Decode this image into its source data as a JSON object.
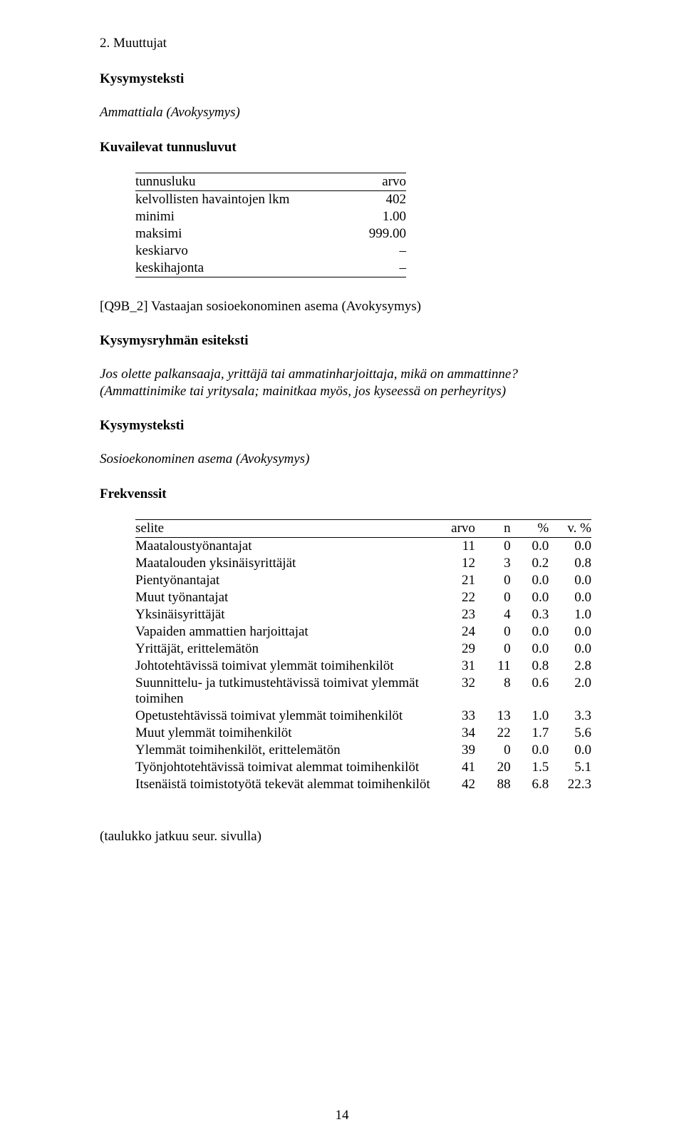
{
  "header": {
    "section": "2. Muuttujat"
  },
  "block1": {
    "heading_kysymysteksti": "Kysymysteksti",
    "subtitle_italic": "Ammattiala (Avokysymys)",
    "heading_kuvailevat": "Kuvailevat tunnusluvut",
    "tunnus": {
      "col_tunnusluku": "tunnusluku",
      "col_arvo": "arvo",
      "rows": [
        {
          "label": "kelvollisten havaintojen lkm",
          "value": "402"
        },
        {
          "label": "minimi",
          "value": "1.00"
        },
        {
          "label": "maksimi",
          "value": "999.00"
        },
        {
          "label": "keskiarvo",
          "value": "–"
        },
        {
          "label": "keskihajonta",
          "value": "–"
        }
      ]
    }
  },
  "block2": {
    "q_heading": "[Q9B_2] Vastaajan sosioekonominen asema (Avokysymys)",
    "heading_kysymysryhma": "Kysymysryhmän esiteksti",
    "esiteksti_italic": "Jos olette palkansaaja, yrittäjä tai ammatinharjoittaja, mikä on ammattinne? (Ammattinimike tai yritysala; mainitkaa myös, jos kyseessä on perheyritys)",
    "heading_kysymysteksti": "Kysymysteksti",
    "kysymysteksti_italic": "Sosioekonominen asema (Avokysymys)",
    "heading_frekvenssit": "Frekvenssit",
    "freq": {
      "col_selite": "selite",
      "col_arvo": "arvo",
      "col_n": "n",
      "col_pct": "%",
      "col_vpct": "v. %",
      "rows": [
        {
          "selite": "Maataloustyönantajat",
          "arvo": "11",
          "n": "0",
          "pct": "0.0",
          "vpct": "0.0"
        },
        {
          "selite": "Maatalouden yksinäisyrittäjät",
          "arvo": "12",
          "n": "3",
          "pct": "0.2",
          "vpct": "0.8"
        },
        {
          "selite": "Pientyönantajat",
          "arvo": "21",
          "n": "0",
          "pct": "0.0",
          "vpct": "0.0"
        },
        {
          "selite": "Muut työnantajat",
          "arvo": "22",
          "n": "0",
          "pct": "0.0",
          "vpct": "0.0"
        },
        {
          "selite": "Yksinäisyrittäjät",
          "arvo": "23",
          "n": "4",
          "pct": "0.3",
          "vpct": "1.0"
        },
        {
          "selite": "Vapaiden ammattien harjoittajat",
          "arvo": "24",
          "n": "0",
          "pct": "0.0",
          "vpct": "0.0"
        },
        {
          "selite": "Yrittäjät, erittelemätön",
          "arvo": "29",
          "n": "0",
          "pct": "0.0",
          "vpct": "0.0"
        },
        {
          "selite": "Johtotehtävissä toimivat ylemmät toimihenkilöt",
          "arvo": "31",
          "n": "11",
          "pct": "0.8",
          "vpct": "2.8"
        },
        {
          "selite": "Suunnittelu- ja tutkimustehtävissä toimivat ylemmät toimihen",
          "arvo": "32",
          "n": "8",
          "pct": "0.6",
          "vpct": "2.0"
        },
        {
          "selite": "Opetustehtävissä toimivat ylemmät toimihenkilöt",
          "arvo": "33",
          "n": "13",
          "pct": "1.0",
          "vpct": "3.3"
        },
        {
          "selite": "Muut ylemmät toimihenkilöt",
          "arvo": "34",
          "n": "22",
          "pct": "1.7",
          "vpct": "5.6"
        },
        {
          "selite": "Ylemmät toimihenkilöt, erittelemätön",
          "arvo": "39",
          "n": "0",
          "pct": "0.0",
          "vpct": "0.0"
        },
        {
          "selite": "Työnjohtotehtävissä toimivat alemmat toimihenkilöt",
          "arvo": "41",
          "n": "20",
          "pct": "1.5",
          "vpct": "5.1"
        },
        {
          "selite": "Itsenäistä toimistotyötä tekevät alemmat toimihenkilöt",
          "arvo": "42",
          "n": "88",
          "pct": "6.8",
          "vpct": "22.3"
        }
      ]
    }
  },
  "footer": {
    "continuation": "(taulukko jatkuu seur. sivulla)",
    "page_number": "14"
  }
}
